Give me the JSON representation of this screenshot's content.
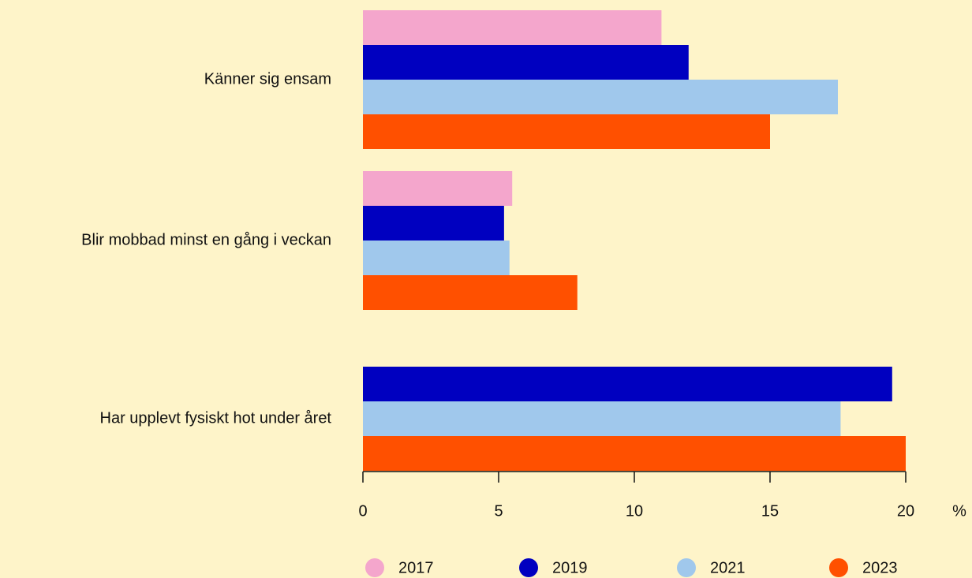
{
  "chart_data": {
    "type": "hbar",
    "categories": [
      "Känner sig ensam",
      "Blir mobbad minst en gång i veckan",
      "Har upplevt fysiskt hot under året"
    ],
    "series": [
      {
        "name": "2017",
        "color": "#f4a6cc",
        "values": [
          11.0,
          5.5,
          null
        ]
      },
      {
        "name": "2019",
        "color": "#0000c0",
        "values": [
          12.0,
          5.2,
          19.5
        ]
      },
      {
        "name": "2021",
        "color": "#a0c8ec",
        "values": [
          17.5,
          5.4,
          17.6
        ]
      },
      {
        "name": "2023",
        "color": "#ff5000",
        "values": [
          15.0,
          7.9,
          20.0
        ]
      }
    ],
    "xlabel": "%",
    "xlim": [
      0,
      20
    ],
    "xticks": [
      0,
      5,
      10,
      15,
      20
    ],
    "legend": "bottom"
  }
}
